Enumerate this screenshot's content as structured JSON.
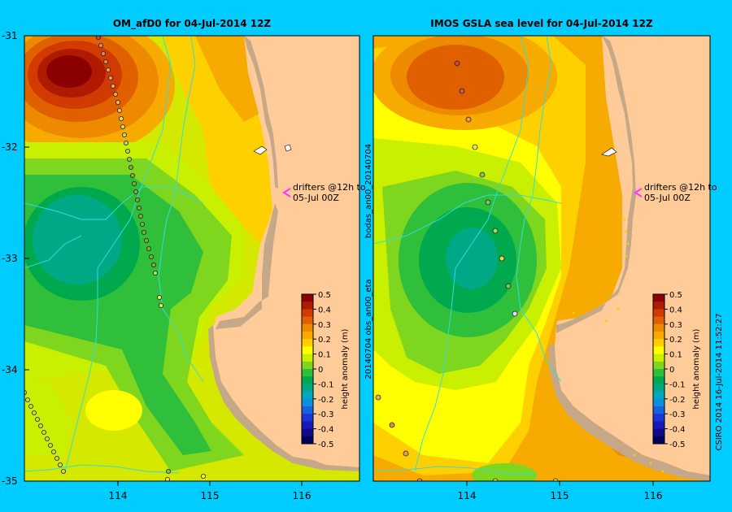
{
  "left_panel": {
    "title": "OM_afD0 for 04-Jul-2014 12Z",
    "drifter_label_1": "drifters @12h to",
    "drifter_label_2": "05-Jul 00Z"
  },
  "right_panel": {
    "title": "IMOS GSLA sea level  for 04-Jul-2014 12Z",
    "drifter_label_1": "drifters @12h to",
    "drifter_label_2": "05-Jul 00Z"
  },
  "axes": {
    "lat_ticks": [
      "-31",
      "-32",
      "-33",
      "-34",
      "-35"
    ],
    "lon_ticks": [
      "114",
      "115",
      "116"
    ]
  },
  "colorbar": {
    "label": "height anomaly (m)",
    "ticks": [
      "0.5",
      "0.4",
      "0.3",
      "0.2",
      "0.1",
      "0",
      "-0.1",
      "-0.2",
      "-0.3",
      "-0.4",
      "-0.5"
    ],
    "colors": [
      "#8b0000",
      "#b01a00",
      "#d13a00",
      "#e06000",
      "#ed8a00",
      "#f7aa00",
      "#ffd000",
      "#ffff00",
      "#c8f000",
      "#7ed61e",
      "#2fbf3a",
      "#00a84e",
      "#00a886",
      "#00a9c0",
      "#0b8fe0",
      "#1561e0",
      "#1a36d6",
      "#1a19b8",
      "#0f0a8c",
      "#05005c"
    ]
  },
  "side_text": {
    "left_vertical": "bodas_an00_20140704",
    "left_vertical_2": "20140704 obs_an00_eta",
    "right_vertical": "CSIRO 2014   16-Jul-2014 11:52:27"
  }
}
